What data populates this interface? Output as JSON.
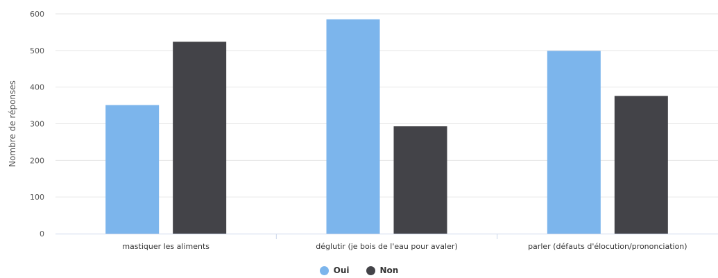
{
  "chart_data": {
    "type": "bar",
    "ylabel": "Nombre de réponses",
    "xlabel": "",
    "ylim": [
      0,
      600
    ],
    "yticks": [
      0,
      100,
      200,
      300,
      400,
      500,
      600
    ],
    "categories": [
      "mastiquer les aliments",
      "déglutir (je bois de l'eau pour avaler)",
      "parler (défauts d'élocution/prononciation)"
    ],
    "series": [
      {
        "name": "Oui",
        "color": "#7cb5ec",
        "values": [
          351,
          585,
          499
        ]
      },
      {
        "name": "Non",
        "color": "#434348",
        "values": [
          524,
          293,
          376
        ]
      }
    ],
    "grid": true,
    "legend_position": "bottom-center"
  }
}
